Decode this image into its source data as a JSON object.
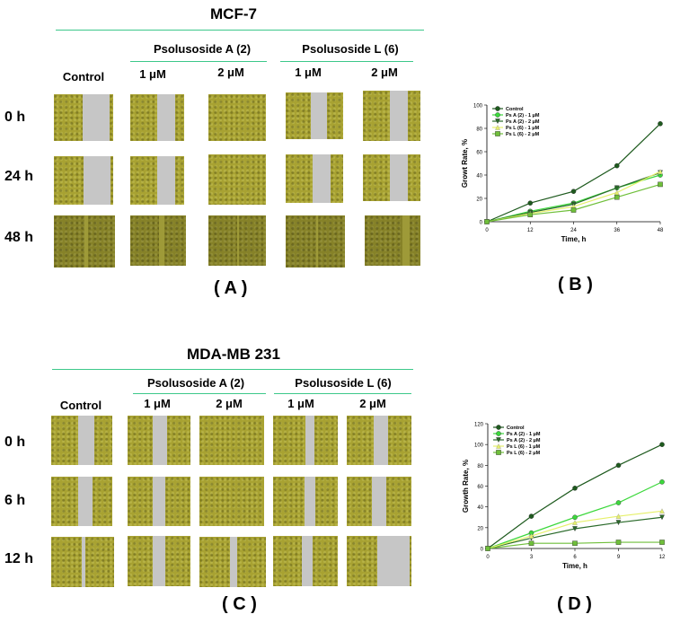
{
  "top": {
    "title": "MCF-7",
    "group_a": "Psolusoside A (2)",
    "group_l": "Psolusoside L (6)",
    "columns": [
      "Control",
      "1 μM",
      "2 μM",
      "1 μM",
      "2 μM"
    ],
    "rows": [
      "0 h",
      "24 h",
      "48 h"
    ],
    "panel_label": "( A )"
  },
  "bottom": {
    "title": "MDA-MB 231",
    "group_a": "Psolusoside A (2)",
    "group_l": "Psolusoside L (6)",
    "columns": [
      "Control",
      "1 μM",
      "2 μM",
      "1 μM",
      "2 μM"
    ],
    "rows": [
      "0 h",
      "6 h",
      "12 h"
    ],
    "panel_label": "( C )"
  },
  "colors": {
    "green_line": "#3cc88a",
    "cell_fill": "#a8a232",
    "gap_fill": "#c6c6c6"
  },
  "chart_data": [
    {
      "type": "line",
      "panel_label": "( B )",
      "xlabel": "Time, h",
      "ylabel": "Growt Rate, %",
      "x": [
        0,
        12,
        24,
        36,
        48
      ],
      "xlim": [
        0,
        48
      ],
      "ylim": [
        0,
        100
      ],
      "yticks": [
        0,
        20,
        40,
        60,
        80,
        100
      ],
      "legend_position": "top-left",
      "series": [
        {
          "name": "Control",
          "values": [
            0,
            16,
            26,
            48,
            84
          ],
          "color": "#1e5a1e",
          "marker": "circle"
        },
        {
          "name": "Ps A (2) - 1 μM",
          "values": [
            0,
            9,
            16,
            29,
            40
          ],
          "color": "#3cd83c",
          "marker": "circle"
        },
        {
          "name": "Ps A (2) - 2 μM",
          "values": [
            0,
            8,
            15,
            29,
            42
          ],
          "color": "#2a6a2a",
          "marker": "triangle-down"
        },
        {
          "name": "Ps L (6) - 1 μM",
          "values": [
            0,
            7,
            13,
            25,
            43
          ],
          "color": "#e6f06a",
          "marker": "triangle-up"
        },
        {
          "name": "Ps L (6) - 2 μM",
          "values": [
            0,
            6,
            10,
            21,
            32
          ],
          "color": "#6fbf3a",
          "marker": "square"
        }
      ]
    },
    {
      "type": "line",
      "panel_label": "( D )",
      "xlabel": "Time, h",
      "ylabel": "Growth Rate, %",
      "x": [
        0,
        3,
        6,
        9,
        12
      ],
      "xlim": [
        0,
        12
      ],
      "ylim": [
        0,
        120
      ],
      "yticks": [
        0,
        20,
        40,
        60,
        80,
        100,
        120
      ],
      "legend_position": "top-left",
      "series": [
        {
          "name": "Control",
          "values": [
            0,
            31,
            58,
            80,
            100
          ],
          "color": "#1e5a1e",
          "marker": "circle"
        },
        {
          "name": "Ps A (2) - 1 μM",
          "values": [
            0,
            15,
            30,
            44,
            64
          ],
          "color": "#3cd83c",
          "marker": "circle"
        },
        {
          "name": "Ps A (2) - 2 μM",
          "values": [
            0,
            10,
            19,
            25,
            30
          ],
          "color": "#2a6a2a",
          "marker": "triangle-down"
        },
        {
          "name": "Ps L (6) - 1 μM",
          "values": [
            0,
            12,
            25,
            31,
            36
          ],
          "color": "#e6f06a",
          "marker": "triangle-up"
        },
        {
          "name": "Ps L (6) - 2 μM",
          "values": [
            0,
            5,
            5,
            6,
            6
          ],
          "color": "#6fbf3a",
          "marker": "square"
        }
      ]
    }
  ]
}
